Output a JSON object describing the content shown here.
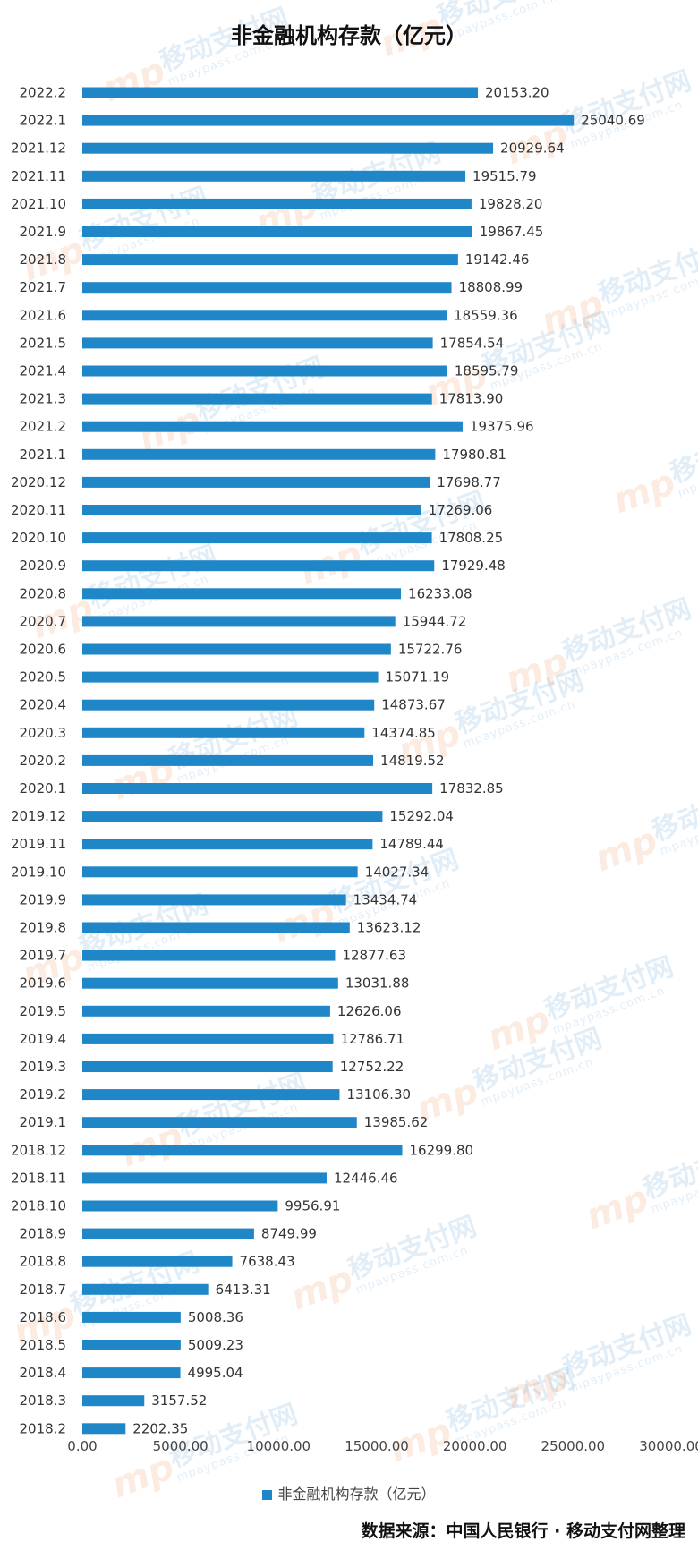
{
  "chart_data": {
    "type": "bar",
    "orientation": "horizontal",
    "title": "非金融机构存款（亿元）",
    "bar_color": "#1f87c8",
    "categories": [
      "2022.2",
      "2022.1",
      "2021.12",
      "2021.11",
      "2021.10",
      "2021.9",
      "2021.8",
      "2021.7",
      "2021.6",
      "2021.5",
      "2021.4",
      "2021.3",
      "2021.2",
      "2021.1",
      "2020.12",
      "2020.11",
      "2020.10",
      "2020.9",
      "2020.8",
      "2020.7",
      "2020.6",
      "2020.5",
      "2020.4",
      "2020.3",
      "2020.2",
      "2020.1",
      "2019.12",
      "2019.11",
      "2019.10",
      "2019.9",
      "2019.8",
      "2019.7",
      "2019.6",
      "2019.5",
      "2019.4",
      "2019.3",
      "2019.2",
      "2019.1",
      "2018.12",
      "2018.11",
      "2018.10",
      "2018.9",
      "2018.8",
      "2018.7",
      "2018.6",
      "2018.5",
      "2018.4",
      "2018.3",
      "2018.2"
    ],
    "series": [
      {
        "name": "非金融机构存款（亿元）",
        "values": [
          20153.2,
          25040.69,
          20929.64,
          19515.79,
          19828.2,
          19867.45,
          19142.46,
          18808.99,
          18559.36,
          17854.54,
          18595.79,
          17813.9,
          19375.96,
          17980.81,
          17698.77,
          17269.06,
          17808.25,
          17929.48,
          16233.08,
          15944.72,
          15722.76,
          15071.19,
          14873.67,
          14374.85,
          14819.52,
          17832.85,
          15292.04,
          14789.44,
          14027.34,
          13434.74,
          13623.12,
          12877.63,
          13031.88,
          12626.06,
          12786.71,
          12752.22,
          13106.3,
          13985.62,
          16299.8,
          12446.46,
          9956.91,
          8749.99,
          7638.43,
          6413.31,
          5008.36,
          5009.23,
          4995.04,
          3157.52,
          2202.35
        ]
      }
    ],
    "data_labels": [
      "20153.20",
      "25040.69",
      "20929.64",
      "19515.79",
      "19828.20",
      "19867.45",
      "19142.46",
      "18808.99",
      "18559.36",
      "17854.54",
      "18595.79",
      "17813.90",
      "19375.96",
      "17980.81",
      "17698.77",
      "17269.06",
      "17808.25",
      "17929.48",
      "16233.08",
      "15944.72",
      "15722.76",
      "15071.19",
      "14873.67",
      "14374.85",
      "14819.52",
      "17832.85",
      "15292.04",
      "14789.44",
      "14027.34",
      "13434.74",
      "13623.12",
      "12877.63",
      "13031.88",
      "12626.06",
      "12786.71",
      "12752.22",
      "13106.30",
      "13985.62",
      "16299.80",
      "12446.46",
      "9956.91",
      "8749.99",
      "7638.43",
      "6413.31",
      "5008.36",
      "5009.23",
      "4995.04",
      "3157.52",
      "2202.35"
    ],
    "xlim": [
      0,
      30000
    ],
    "x_ticks": [
      0,
      5000,
      10000,
      15000,
      20000,
      25000,
      30000
    ],
    "x_tick_labels": [
      "0.00",
      "5000.00",
      "10000.00",
      "15000.00",
      "20000.00",
      "25000.00",
      "30000.00"
    ],
    "grid": false,
    "legend_position": "bottom"
  },
  "legend": {
    "label": "非金融机构存款（亿元）"
  },
  "source_note": "数据来源：中国人民银行 · 移动支付网整理",
  "watermark": {
    "logo": "mp",
    "cn": "移动支付网",
    "en": "mpaypass.com.cn"
  }
}
